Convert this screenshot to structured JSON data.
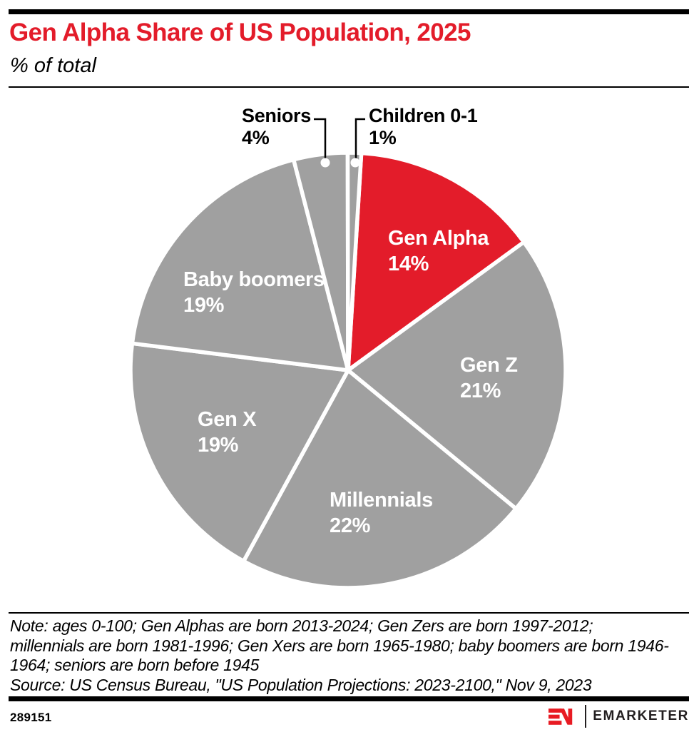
{
  "header": {
    "title": "Gen Alpha Share of US Population, 2025",
    "subtitle": "% of total"
  },
  "chart_data": {
    "type": "pie",
    "title": "Gen Alpha Share of US Population, 2025",
    "unit": "% of total",
    "order": "clockwise from top",
    "slices": [
      {
        "label": "Gen Alpha",
        "value": 14,
        "display": "14%",
        "color": "#e31c2a",
        "label_style": "on-slice"
      },
      {
        "label": "Gen Z",
        "value": 21,
        "display": "21%",
        "color": "#a0a0a0",
        "label_style": "on-slice"
      },
      {
        "label": "Millennials",
        "value": 22,
        "display": "22%",
        "color": "#a0a0a0",
        "label_style": "on-slice"
      },
      {
        "label": "Gen X",
        "value": 19,
        "display": "19%",
        "color": "#a0a0a0",
        "label_style": "on-slice"
      },
      {
        "label": "Baby boomers",
        "value": 19,
        "display": "19%",
        "color": "#a0a0a0",
        "label_style": "on-slice"
      },
      {
        "label": "Seniors",
        "value": 4,
        "display": "4%",
        "color": "#a0a0a0",
        "label_style": "callout"
      },
      {
        "label": "Children 0-1",
        "value": 1,
        "display": "1%",
        "color": "#a0a0a0",
        "label_style": "callout"
      }
    ],
    "highlight_color": "#e31c2a",
    "base_color": "#a0a0a0",
    "separator_color": "#ffffff"
  },
  "note": {
    "lines": [
      "Note: ages 0-100; Gen Alphas are born 2013-2024; Gen Zers are born 1997-2012;",
      "millennials are born 1981-1996; Gen Xers are born 1965-1980; baby boomers are born 1946-",
      "1964; seniors are born before 1945"
    ],
    "source": "Source: US Census Bureau, \"US Population Projections: 2023-2100,\" Nov 9, 2023"
  },
  "footer": {
    "chart_id": "289151",
    "brand": "EMARKETER",
    "monogram": "EM",
    "brand_red": "#e81b23"
  }
}
